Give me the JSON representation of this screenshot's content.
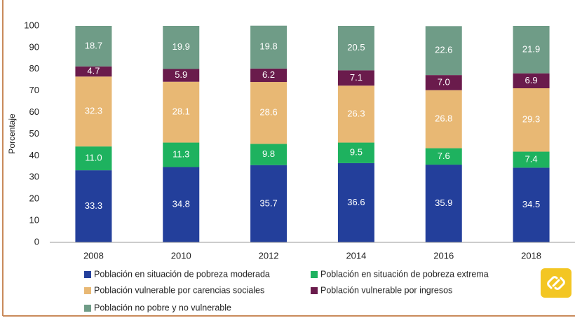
{
  "chart_data": {
    "type": "stacked_bar",
    "y_label": "Porcentaje",
    "categories": [
      "2008",
      "2010",
      "2012",
      "2014",
      "2016",
      "2018"
    ],
    "series": [
      {
        "name": "Población en situación de pobreza moderada",
        "color": "#233f9b",
        "values": [
          33.3,
          34.8,
          35.7,
          36.6,
          35.9,
          34.5
        ],
        "value_labels": [
          "33.3",
          "34.8",
          "35.7",
          "36.6",
          "35.9",
          "34.5"
        ]
      },
      {
        "name": "Población en situación de pobreza extrema",
        "color": "#1eb25f",
        "values": [
          11,
          11.3,
          9.8,
          9.5,
          7.6,
          7.4
        ],
        "value_labels": [
          "11.0",
          "11.3",
          "9.8",
          "9.5",
          "7.6",
          "7.4"
        ]
      },
      {
        "name": "Población vulnerable por carencias sociales",
        "color": "#e8b874",
        "values": [
          32.3,
          28.1,
          28.6,
          26.3,
          26.8,
          29.3
        ],
        "value_labels": [
          "32.3",
          "28.1",
          "28.6",
          "26.3",
          "26.8",
          "29.3"
        ]
      },
      {
        "name": "Población vulnerable por ingresos",
        "color": "#6a1b4c",
        "values": [
          4.7,
          5.9,
          6.2,
          7.1,
          7,
          6.9
        ],
        "value_labels": [
          "4.7",
          "5.9",
          "6.2",
          "7.1",
          "7.0",
          "6.9"
        ]
      },
      {
        "name": "Población no pobre y no vulnerable",
        "color": "#6f9c87",
        "values": [
          18.7,
          19.9,
          19.8,
          20.5,
          22.6,
          21.9
        ],
        "value_labels": [
          "18.7",
          "19.9",
          "19.8",
          "20.5",
          "22.6",
          "21.9"
        ]
      }
    ],
    "ylim": [
      0,
      100
    ],
    "yticks": [
      0,
      10,
      20,
      30,
      40,
      50,
      60,
      70,
      80,
      90,
      100
    ]
  }
}
